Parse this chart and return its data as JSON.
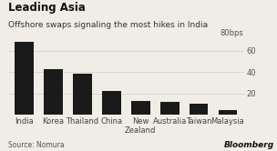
{
  "title": "Leading Asia",
  "subtitle": "Offshore swaps signaling the most hikes in India",
  "ylabel_label": "80bps",
  "source": "Source: Nomura",
  "categories": [
    "India",
    "Korea",
    "Thailand",
    "China",
    "New\nZealand",
    "Australia",
    "Taiwan",
    "Malaysia"
  ],
  "values": [
    68,
    43,
    38,
    22,
    13,
    12,
    10,
    4
  ],
  "bar_color": "#1a1a1a",
  "background_color": "#f0ece6",
  "grid_color": "#d0ccc8",
  "yticks": [
    20,
    40,
    60
  ],
  "ylim": [
    0,
    72
  ],
  "title_fontsize": 8.5,
  "subtitle_fontsize": 6.5,
  "tick_fontsize": 6,
  "source_fontsize": 5.5
}
